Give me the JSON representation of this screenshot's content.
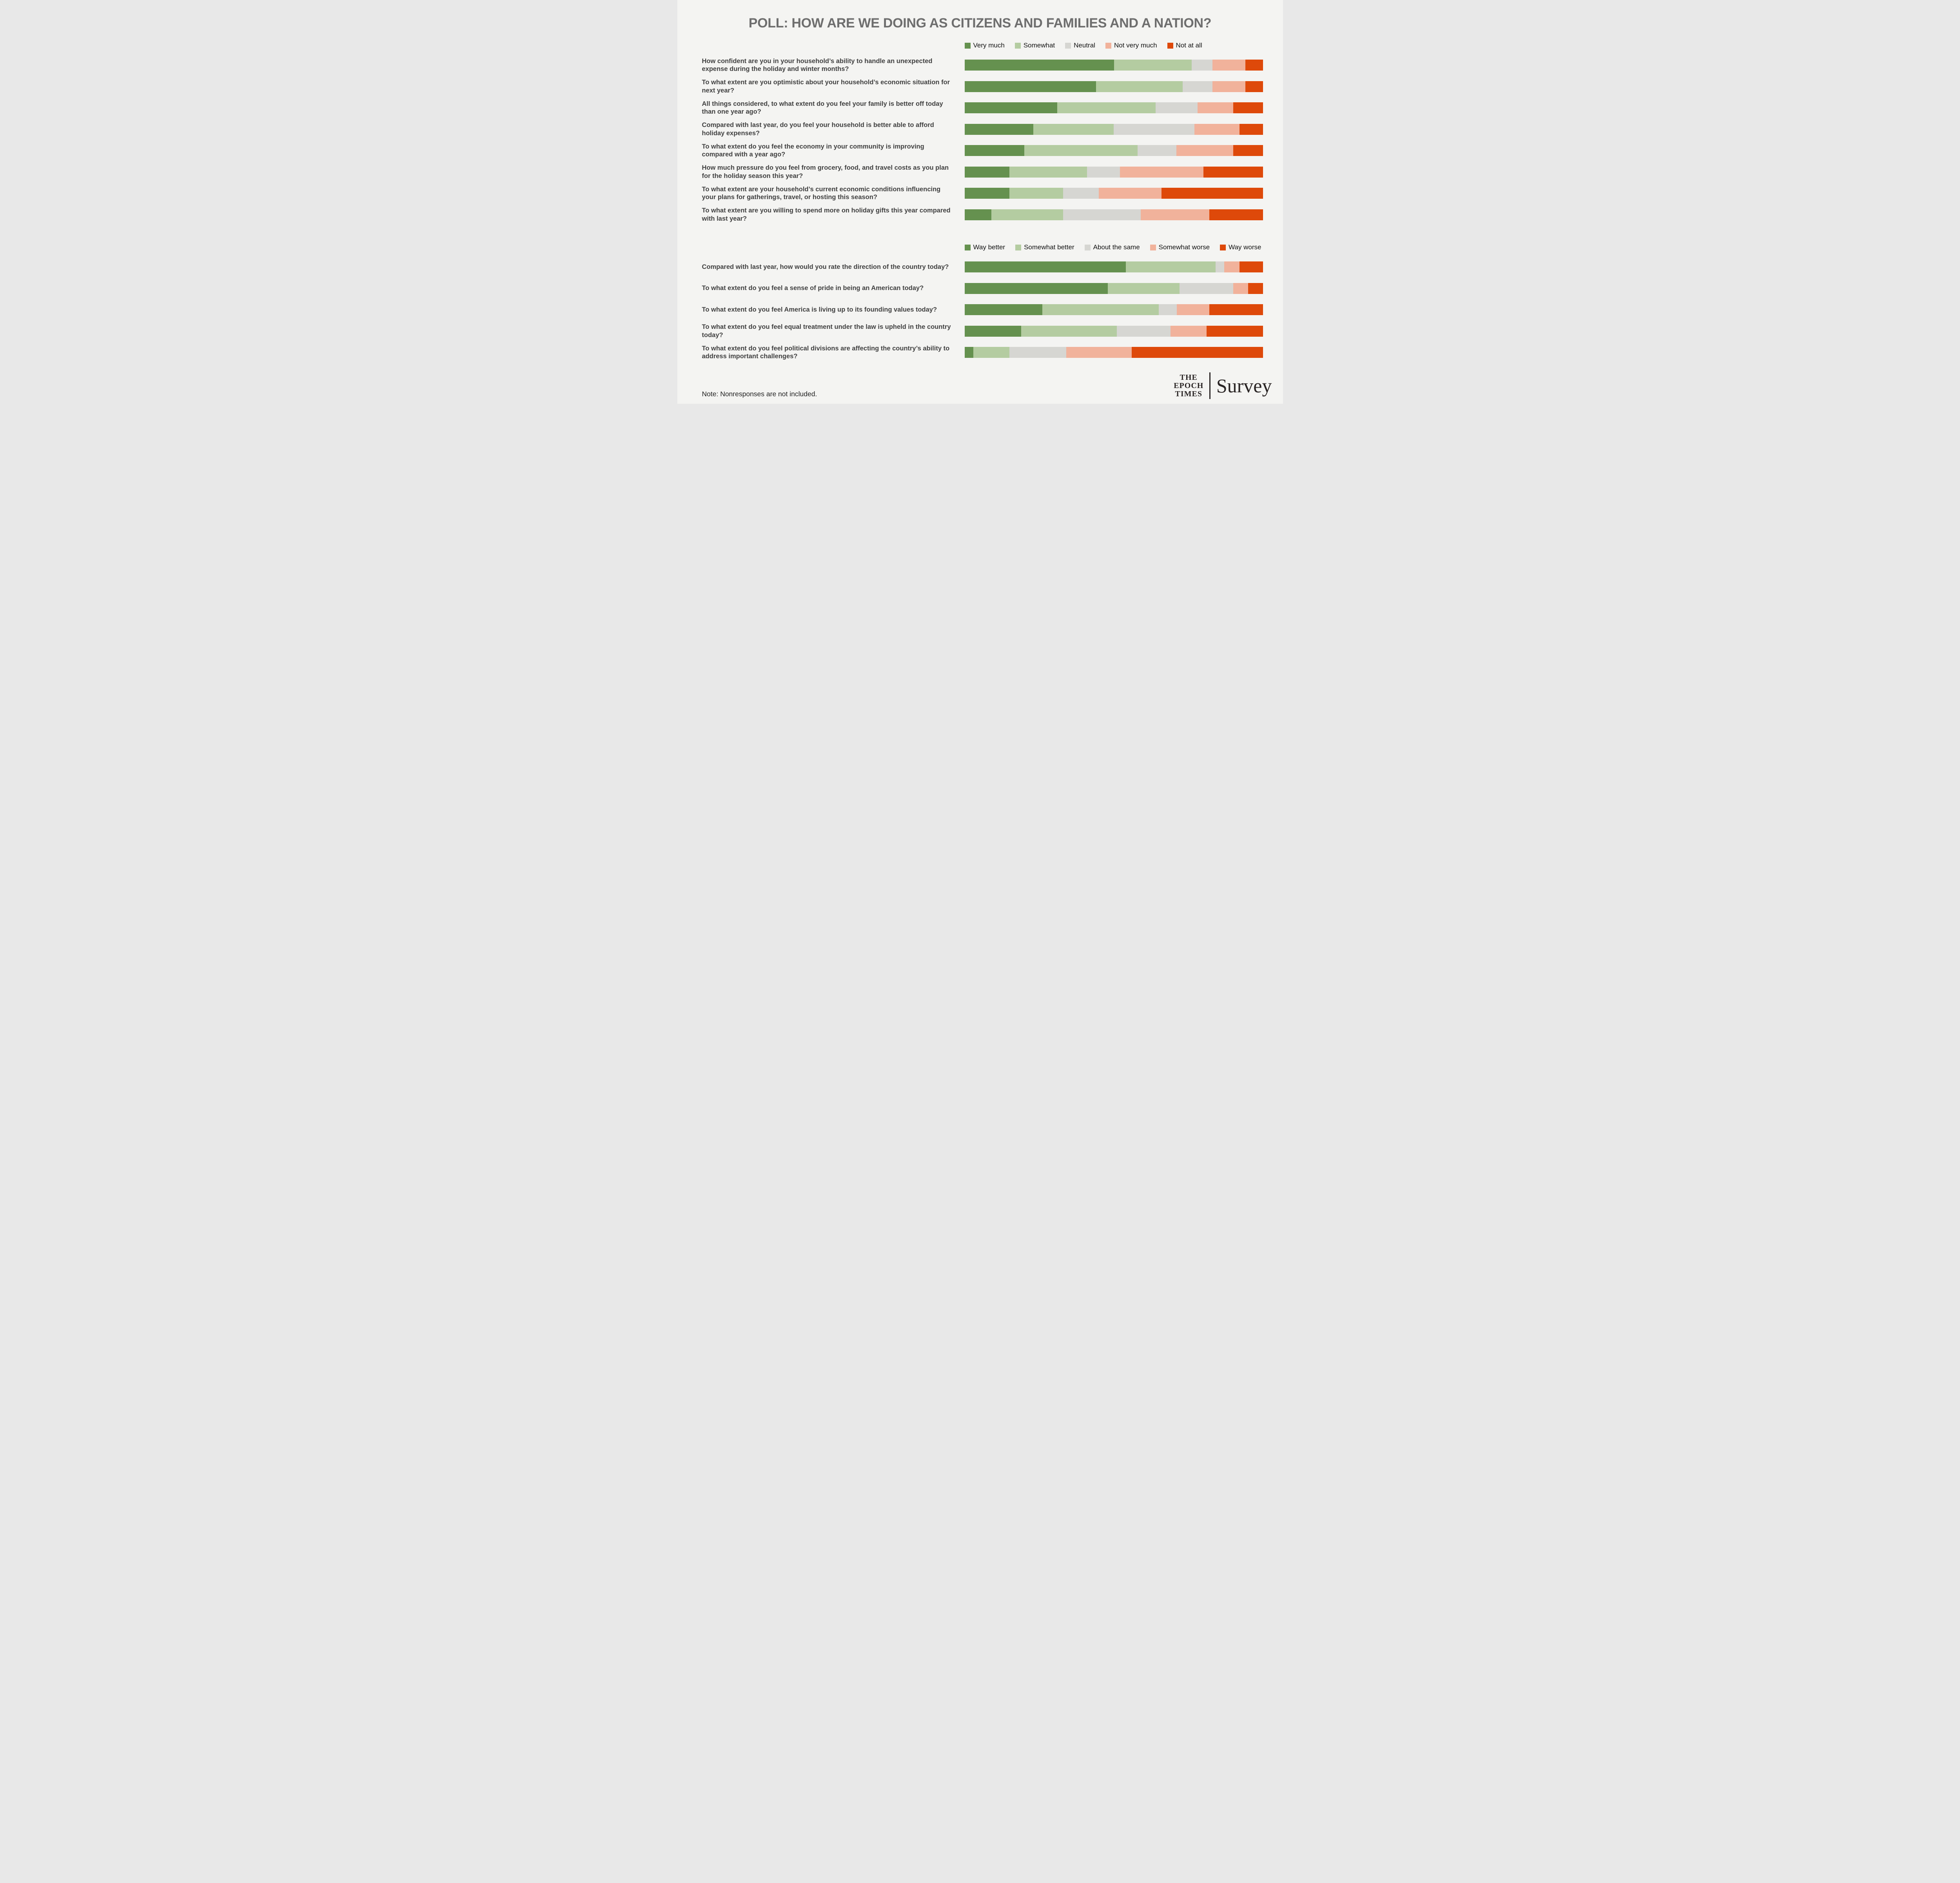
{
  "title": "POLL: HOW ARE WE DOING AS CITIZENS AND FAMILIES AND A NATION?",
  "note": "Note: Nonresponses are not included.",
  "logo": {
    "brand_lines": [
      "THE",
      "EPOCH",
      "TIMES"
    ],
    "product": "Survey"
  },
  "colors": {
    "background": "#F4F4F2",
    "title_text": "#6E6E6E",
    "question_text": "#414141",
    "legend_text": "#111111",
    "logo_text": "#2A2525",
    "scale_positive_strong": "#65914F",
    "scale_positive_mild": "#B4CCA1",
    "scale_neutral": "#D6D6D2",
    "scale_negative_mild": "#F1B29B",
    "scale_negative_strong": "#DE490A"
  },
  "chart_data": [
    {
      "type": "bar",
      "stacked": true,
      "orientation": "horizontal",
      "unit": "percent",
      "xlim": [
        0,
        100
      ],
      "legend_position": "top",
      "legend": [
        "Very much",
        "Somewhat",
        "Neutral",
        "Not very much",
        "Not at all"
      ],
      "colors": [
        "#65914F",
        "#B4CCA1",
        "#D6D6D2",
        "#F1B29B",
        "#DE490A"
      ],
      "rows": [
        {
          "question": "How confident are you in your household’s ability to handle an unexpected expense during the holiday and winter months?",
          "values": [
            50,
            26,
            7,
            11,
            6
          ]
        },
        {
          "question": "To what extent are you optimistic about your household’s economic situation for next year?",
          "values": [
            44,
            29,
            10,
            11,
            6
          ]
        },
        {
          "question": "All things considered, to what extent do you feel your family is better off today than one year ago?",
          "values": [
            31,
            33,
            14,
            12,
            10
          ]
        },
        {
          "question": "Compared with last year, do you feel your household is better able to afford holiday expenses?",
          "values": [
            23,
            27,
            27,
            15,
            8
          ]
        },
        {
          "question": "To what extent do you feel the economy in your community is improving compared with a year ago?",
          "values": [
            20,
            38,
            13,
            19,
            10
          ]
        },
        {
          "question": "How much pressure do you feel from grocery, food, and travel costs as you plan for the holiday season this year?",
          "values": [
            15,
            26,
            11,
            28,
            20
          ]
        },
        {
          "question": "To what extent are your household’s current economic conditions influencing your plans for gatherings, travel, or hosting this season?",
          "values": [
            15,
            18,
            12,
            21,
            34
          ]
        },
        {
          "question": "To what extent are you willing to spend more on holiday gifts this year compared with last year?",
          "values": [
            9,
            24,
            26,
            23,
            18
          ]
        }
      ]
    },
    {
      "type": "bar",
      "stacked": true,
      "orientation": "horizontal",
      "unit": "percent",
      "xlim": [
        0,
        100
      ],
      "legend_position": "top",
      "legend": [
        "Way better",
        "Somewhat better",
        "About the same",
        "Somewhat worse",
        "Way worse"
      ],
      "colors": [
        "#65914F",
        "#B4CCA1",
        "#D6D6D2",
        "#F1B29B",
        "#DE490A"
      ],
      "rows": [
        {
          "question": "Compared with last year, how would you rate the direction of the country today?",
          "values": [
            54,
            30,
            3,
            5,
            8
          ]
        },
        {
          "question": "To what extent do you feel a sense of pride in being an American today?",
          "values": [
            48,
            24,
            18,
            5,
            5
          ]
        },
        {
          "question": "To what extent do you feel America is living up to its founding values today?",
          "values": [
            26,
            39,
            6,
            11,
            18
          ]
        },
        {
          "question": "To what extent do you feel equal treatment under the law is upheld in the country today?",
          "values": [
            19,
            32,
            18,
            12,
            19
          ]
        },
        {
          "question": "To what extent do you feel political divisions are affecting the country’s ability to address important challenges?",
          "values": [
            3,
            12,
            19,
            22,
            44
          ]
        }
      ]
    }
  ]
}
